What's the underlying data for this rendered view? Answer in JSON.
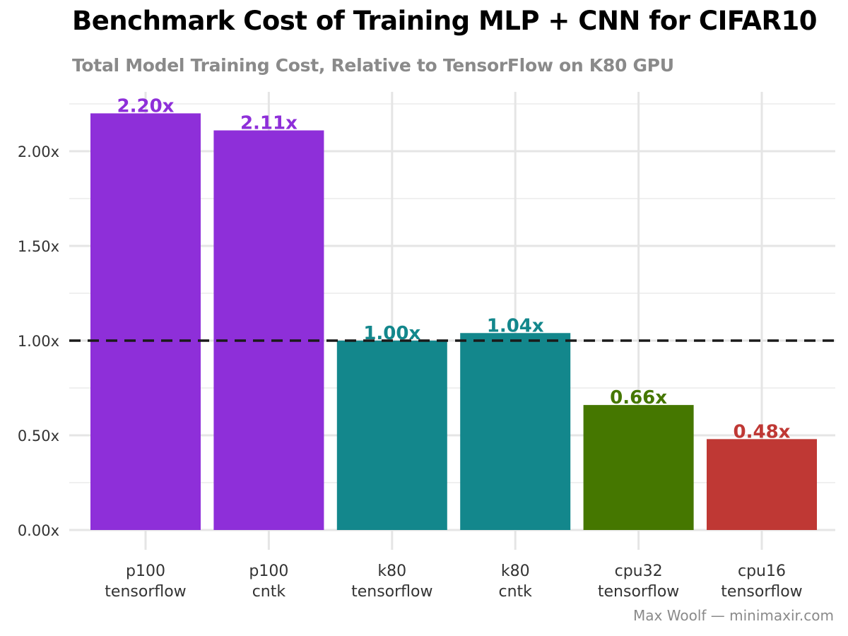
{
  "title": "Benchmark Cost of Training MLP + CNN for CIFAR10",
  "subtitle": "Total Model Training Cost, Relative to TensorFlow on K80 GPU",
  "caption": "Max Woolf — minimaxir.com",
  "chart_data": {
    "type": "bar",
    "categories": [
      [
        "p100",
        "tensorflow"
      ],
      [
        "p100",
        "cntk"
      ],
      [
        "k80",
        "tensorflow"
      ],
      [
        "k80",
        "cntk"
      ],
      [
        "cpu32",
        "tensorflow"
      ],
      [
        "cpu16",
        "tensorflow"
      ]
    ],
    "values": [
      2.2,
      2.11,
      1.0,
      1.04,
      0.66,
      0.48
    ],
    "data_labels": [
      "2.20x",
      "2.11x",
      "1.00x",
      "1.04x",
      "0.66x",
      "0.48x"
    ],
    "bar_colors": [
      "#8e2fd9",
      "#8e2fd9",
      "#13878c",
      "#13878c",
      "#457700",
      "#bf3834"
    ],
    "y_ticks": [
      0,
      0.5,
      1.0,
      1.5,
      2.0
    ],
    "y_tick_labels": [
      "0.00x",
      "0.50x",
      "1.00x",
      "1.50x",
      "2.00x"
    ],
    "ylim": [
      0,
      2.25
    ],
    "reference_line": 1.0,
    "xlabel": "",
    "ylabel": "",
    "grid": true
  }
}
